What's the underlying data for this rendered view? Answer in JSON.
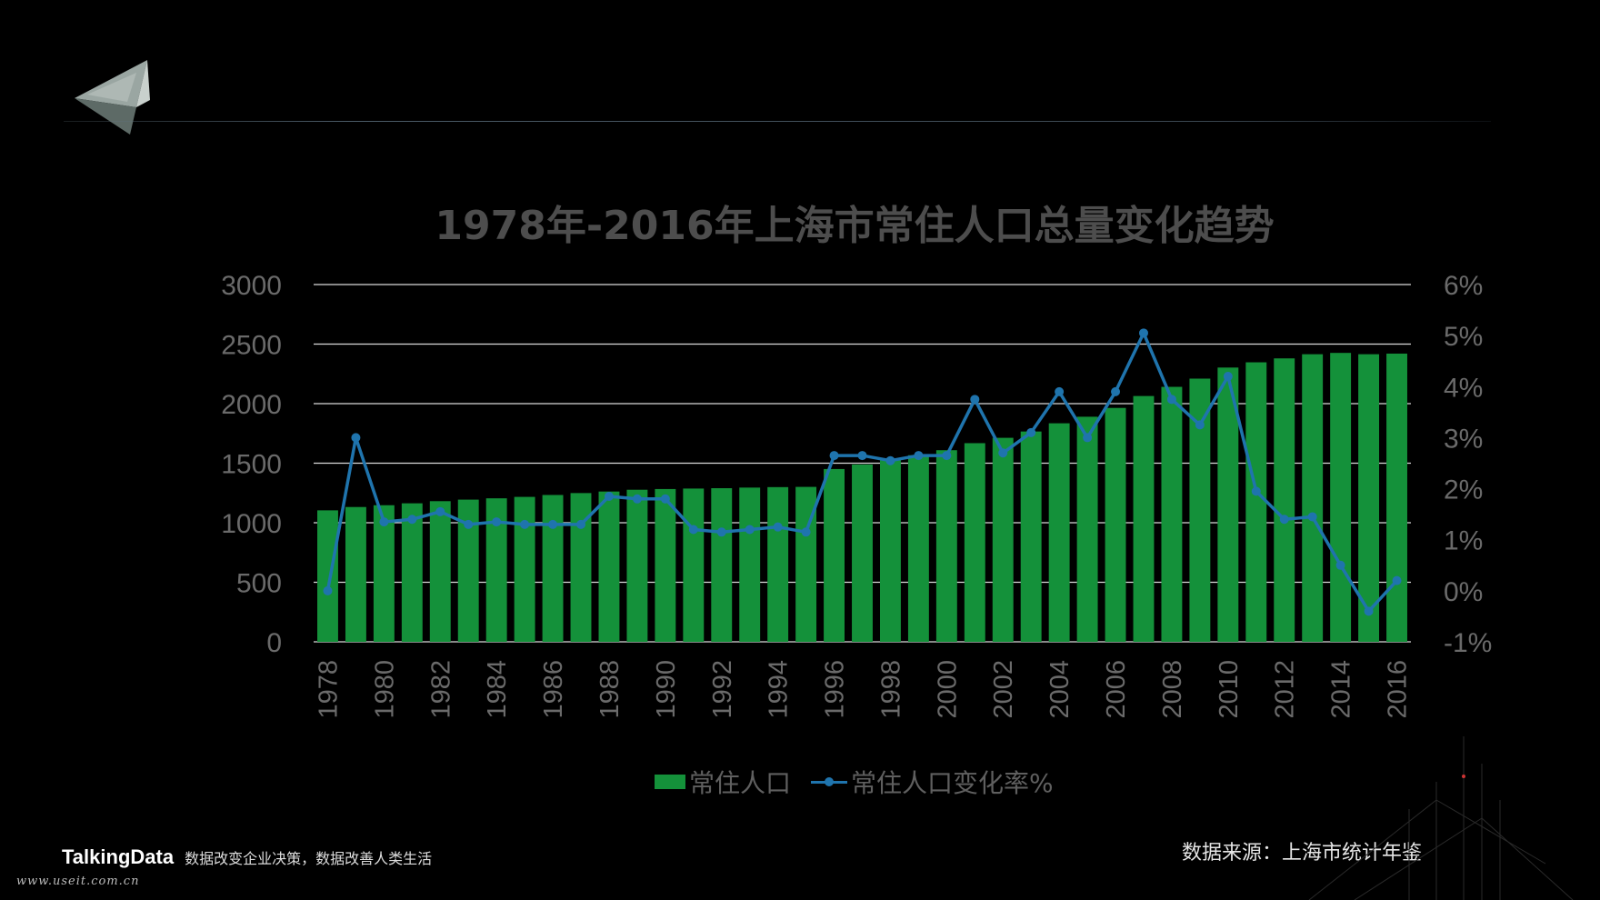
{
  "slide": {
    "source": "数据来源：上海市统计年鉴",
    "brand_name": "TalkingData",
    "brand_slogan": "数据改变企业决策，数据改善人类生活",
    "watermark": "www.useit.com.cn"
  },
  "colors": {
    "bar": "#14913a",
    "line": "#1f74ad",
    "grid": "#d9d9d9",
    "title": "#4d4d4d",
    "tick": "#6a6a6a"
  },
  "chart_data": {
    "type": "bar",
    "title": "1978年-2016年上海市常住人口总量变化趋势",
    "categories": [
      "1978",
      "1979",
      "1980",
      "1981",
      "1982",
      "1983",
      "1984",
      "1985",
      "1986",
      "1987",
      "1988",
      "1989",
      "1990",
      "1991",
      "1992",
      "1993",
      "1994",
      "1995",
      "1996",
      "1997",
      "1998",
      "1999",
      "2000",
      "2001",
      "2002",
      "2003",
      "2004",
      "2005",
      "2006",
      "2007",
      "2008",
      "2009",
      "2010",
      "2011",
      "2012",
      "2013",
      "2014",
      "2015",
      "2016"
    ],
    "x_tick_labels": [
      "1978",
      "1980",
      "1982",
      "1984",
      "1986",
      "1988",
      "1990",
      "1992",
      "1994",
      "1996",
      "1998",
      "2000",
      "2002",
      "2004",
      "2006",
      "2008",
      "2010",
      "2012",
      "2014",
      "2016"
    ],
    "series": [
      {
        "name": "常住人口",
        "type": "bar",
        "axis": "left",
        "values": [
          1104,
          1132,
          1147,
          1163,
          1181,
          1194,
          1205,
          1217,
          1233,
          1249,
          1262,
          1277,
          1283,
          1287,
          1290,
          1295,
          1299,
          1301,
          1451,
          1489,
          1527,
          1567,
          1609,
          1668,
          1713,
          1766,
          1835,
          1890,
          1964,
          2064,
          2141,
          2210,
          2303,
          2347,
          2380,
          2415,
          2426,
          2415,
          2420
        ]
      },
      {
        "name": "常住人口变化率%",
        "type": "line",
        "axis": "right",
        "values": [
          0.0,
          3.0,
          1.35,
          1.4,
          1.55,
          1.3,
          1.35,
          1.3,
          1.3,
          1.3,
          1.85,
          1.8,
          1.8,
          1.2,
          1.15,
          1.2,
          1.25,
          1.15,
          2.65,
          2.65,
          2.55,
          2.65,
          2.65,
          3.75,
          2.7,
          3.1,
          3.9,
          3.0,
          3.9,
          5.05,
          3.75,
          3.25,
          4.2,
          1.95,
          1.4,
          1.45,
          0.5,
          -0.4,
          0.2
        ]
      }
    ],
    "y_left": {
      "min": 0,
      "max": 3000,
      "ticks": [
        "0",
        "500",
        "1000",
        "1500",
        "2000",
        "2500",
        "3000"
      ]
    },
    "y_right": {
      "min": -1,
      "max": 6,
      "ticks": [
        "-1%",
        "0%",
        "1%",
        "2%",
        "3%",
        "4%",
        "5%",
        "6%"
      ]
    },
    "grid": true,
    "legend": "bottom"
  }
}
